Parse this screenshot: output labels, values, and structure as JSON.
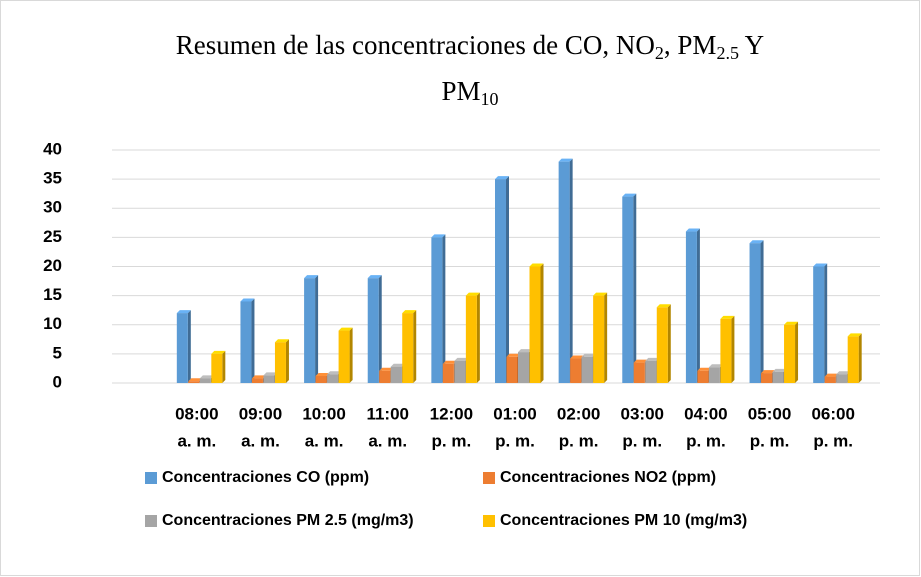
{
  "chart_data": {
    "type": "bar",
    "title": [
      [
        {
          "text": "Resumen de las concentraciones de CO, NO"
        },
        {
          "text": "2",
          "sub": true
        },
        {
          "text": ", PM"
        },
        {
          "text": "2.5",
          "sub": true
        },
        {
          "text": " Y"
        }
      ],
      [
        {
          "text": "PM"
        },
        {
          "text": "10",
          "sub": true
        }
      ]
    ],
    "categories": [
      [
        "08:00",
        "a. m."
      ],
      [
        "09:00",
        "a. m."
      ],
      [
        "10:00",
        "a. m."
      ],
      [
        "11:00",
        "a. m."
      ],
      [
        "12:00",
        "p. m."
      ],
      [
        "01:00",
        "p. m."
      ],
      [
        "02:00",
        "p. m."
      ],
      [
        "03:00",
        "p. m."
      ],
      [
        "04:00",
        "p. m."
      ],
      [
        "05:00",
        "p. m."
      ],
      [
        "06:00",
        "p. m."
      ]
    ],
    "series": [
      {
        "name": "Concentraciones CO (ppm)",
        "color": "#5b9bd5",
        "values": [
          12,
          14,
          18,
          18,
          25,
          35,
          38,
          32,
          26,
          24,
          20
        ]
      },
      {
        "name": "Concentraciones NO2 (ppm)",
        "color": "#ed7d31",
        "values": [
          0.3,
          0.8,
          1.2,
          2.1,
          3.3,
          4.5,
          4.2,
          3.5,
          2.1,
          1.7,
          1.1
        ]
      },
      {
        "name": "Concentraciones PM 2.5 (mg/m3)",
        "color": "#a5a5a5",
        "values": [
          0.8,
          1.3,
          1.5,
          2.8,
          3.8,
          5.3,
          4.5,
          3.8,
          2.7,
          1.9,
          1.5
        ]
      },
      {
        "name": "Concentraciones PM 10 (mg/m3)",
        "color": "#ffc000",
        "values": [
          5,
          7,
          9,
          12,
          15,
          20,
          15,
          13,
          11,
          10,
          8
        ]
      }
    ],
    "ylim": [
      0,
      40
    ],
    "yticks": [
      0,
      5,
      10,
      15,
      20,
      25,
      30,
      35,
      40
    ],
    "grid": true,
    "legend": "bottom"
  }
}
